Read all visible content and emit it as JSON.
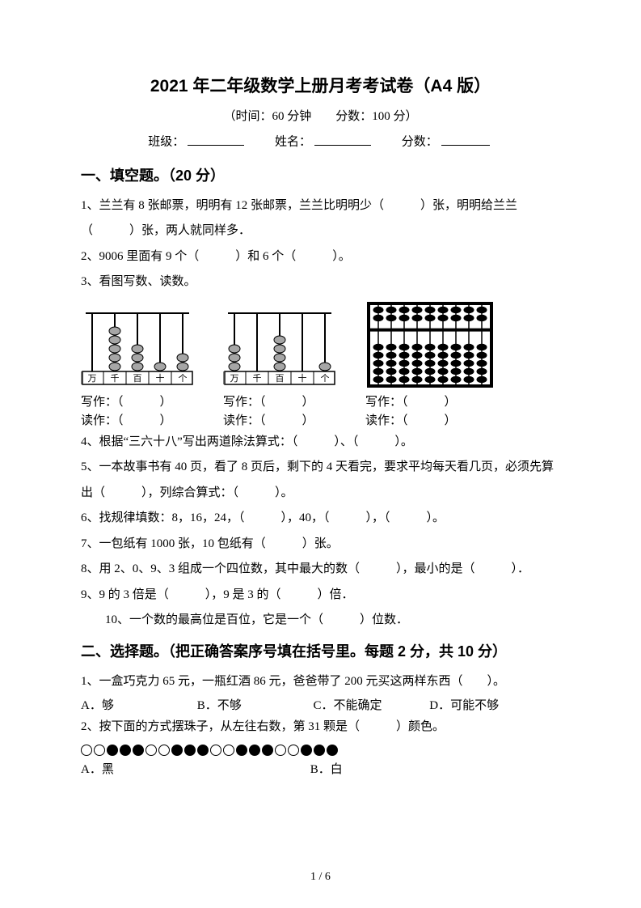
{
  "title": "2021 年二年级数学上册月考考试卷（A4 版）",
  "subtitle": "（时间：60 分钟　　分数：100 分）",
  "fields": {
    "class": "班级：",
    "name": "姓名：",
    "score": "分数："
  },
  "section1_heading": "一、填空题。（20 分）",
  "q1": "1、兰兰有 8 张邮票，明明有 12 张邮票，兰兰比明明少（　　　）张，明明给兰兰（　　　）张，两人就同样多．",
  "q2": "2、9006 里面有 9 个（　　　）和 6 个（　　　）。",
  "q3": "3、看图写数、读数。",
  "write_label": "写作：（　　　）",
  "read_label": "读作：（　　　）",
  "q4": "4、根据“三六十八”写出两道除法算式：（　　　）、（　　　）。",
  "q5": "5、一本故事书有 40 页，看了 8 页后，剩下的 4 天看完，要求平均每天看几页，必须先算出（　　　），列综合算式：（　　　）。",
  "q6": "6、找规律填数：8，16，24，（　　　），40，（　　　），（　　　）。",
  "q7": "7、一包纸有 1000 张，10 包纸有（　　　）张。",
  "q8": "8、用 2、0、9、3 组成一个四位数，其中最大的数（　　　），最小的是（　　　）．",
  "q9": "9、9 的 3 倍是（　　　），9 是 3 的（　　　）倍．",
  "q10": "10、一个数的最高位是百位，它是一个（　　　）位数．",
  "section2_heading": "二、选择题。（把正确答案序号填在括号里。每题 2 分，共 10 分）",
  "s2q1": "1、一盒巧克力 65 元，一瓶红酒 86 元，爸爸带了 200 元买这两样东西（　　）。",
  "s2q1_choices": {
    "a": "A．够",
    "b": "B．不够",
    "c": "C．不能确定",
    "d": "D．可能不够"
  },
  "s2q2": "2、按下面的方式摆珠子，从左往右数，第 31 颗是（　　　）颜色。",
  "bead_pattern": [
    0,
    0,
    1,
    1,
    1,
    0,
    0,
    1,
    1,
    1,
    0,
    0,
    1,
    1,
    1,
    0,
    0,
    1,
    1,
    1
  ],
  "s2q2_choices": {
    "a": "A．黑",
    "b": "B．白"
  },
  "footer": "1 / 6",
  "abacus1": {
    "places": [
      "万",
      "千",
      "百",
      "十",
      "个"
    ],
    "beads": [
      0,
      5,
      3,
      1,
      2
    ],
    "colors": {
      "rod": "#000000",
      "bead_fill": "#a6a6a6",
      "bead_stroke": "#000000",
      "base": "#000000"
    }
  },
  "abacus2": {
    "places": [
      "万",
      "千",
      "百",
      "十",
      "个"
    ],
    "beads": [
      3,
      0,
      4,
      0,
      1
    ],
    "colors": {
      "rod": "#000000",
      "bead_fill": "#a6a6a6",
      "bead_stroke": "#000000",
      "base": "#000000"
    }
  },
  "suanpan": {
    "rods": 9,
    "upper_beads": 2,
    "lower_beads": 5,
    "frame_color": "#000000",
    "bead_color": "#000000"
  }
}
